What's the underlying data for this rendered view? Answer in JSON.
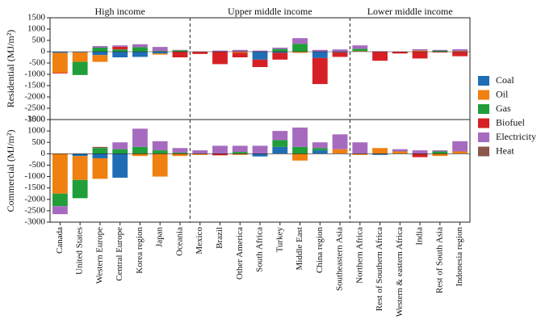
{
  "chart_data": [
    {
      "type": "bar",
      "stacked": true,
      "ylabel": "Residential (MJ/m²)",
      "ylim": [
        -3000,
        1500
      ],
      "yticks": [
        1500,
        1000,
        500,
        0,
        -500,
        -1000,
        -1500,
        -2000,
        -2500,
        -3000
      ],
      "groups": [
        {
          "name": "High income",
          "categories": [
            "Canada",
            "United States",
            "Western Europe",
            "Central Europe",
            "Korea region",
            "Japan",
            "Oceania"
          ]
        },
        {
          "name": "Upper middle income",
          "categories": [
            "Mexico",
            "Brazil",
            "Other America",
            "South Africa",
            "Turkey",
            "Middle East",
            "China region",
            "Southeastern Asia"
          ]
        },
        {
          "name": "Lower middle income",
          "categories": [
            "Northern Africa",
            "Rest of Southern Africa",
            "Western & eastern Africa",
            "India",
            "Rest of South Asia",
            "Indonesia region"
          ]
        }
      ],
      "series": [
        {
          "name": "Coal",
          "color": "#1f6eb5",
          "values": [
            -50,
            -30,
            -150,
            -250,
            -230,
            -80,
            0,
            0,
            0,
            0,
            -350,
            -50,
            0,
            -280,
            -30,
            0,
            0,
            0,
            0,
            0,
            0
          ]
        },
        {
          "name": "Oil",
          "color": "#f08010",
          "values": [
            -880,
            -420,
            -300,
            0,
            0,
            -50,
            0,
            0,
            0,
            -50,
            0,
            0,
            -50,
            0,
            0,
            30,
            0,
            0,
            50,
            0,
            30
          ]
        },
        {
          "name": "Gas",
          "color": "#1f9e3a",
          "values": [
            0,
            -580,
            180,
            100,
            200,
            30,
            60,
            0,
            0,
            0,
            0,
            120,
            350,
            0,
            0,
            100,
            0,
            0,
            0,
            50,
            0
          ]
        },
        {
          "name": "Biofuel",
          "color": "#d62025",
          "values": [
            -30,
            0,
            0,
            120,
            0,
            0,
            -250,
            -100,
            -550,
            -200,
            -330,
            -300,
            0,
            -1150,
            -200,
            0,
            -400,
            -80,
            -300,
            -30,
            -200
          ]
        },
        {
          "name": "Electricity",
          "color": "#a66bbf",
          "values": [
            0,
            0,
            70,
            60,
            130,
            180,
            20,
            0,
            50,
            80,
            50,
            60,
            250,
            80,
            100,
            150,
            20,
            0,
            60,
            30,
            80
          ]
        },
        {
          "name": "Heat",
          "color": "#8c564b",
          "values": [
            0,
            0,
            0,
            0,
            0,
            0,
            0,
            0,
            0,
            0,
            0,
            0,
            0,
            0,
            0,
            0,
            0,
            0,
            0,
            0,
            0
          ]
        }
      ]
    },
    {
      "type": "bar",
      "stacked": true,
      "ylabel": "Commercial (MJ/m²)",
      "ylim": [
        -3000,
        1500
      ],
      "yticks": [
        1500,
        1000,
        500,
        0,
        -500,
        -1000,
        -1500,
        -2000,
        -2500,
        -3000
      ],
      "series": [
        {
          "name": "Coal",
          "color": "#1f6eb5",
          "values": [
            0,
            -100,
            -200,
            -1050,
            0,
            0,
            0,
            0,
            0,
            0,
            -120,
            300,
            0,
            150,
            0,
            0,
            -50,
            0,
            0,
            0,
            0
          ]
        },
        {
          "name": "Oil",
          "color": "#f08010",
          "values": [
            -1750,
            -1050,
            -900,
            0,
            -100,
            -1000,
            -100,
            -50,
            0,
            -50,
            0,
            0,
            -300,
            0,
            200,
            -50,
            250,
            100,
            0,
            -100,
            100
          ]
        },
        {
          "name": "Gas",
          "color": "#1f9e3a",
          "values": [
            -550,
            -800,
            250,
            200,
            300,
            150,
            50,
            0,
            0,
            80,
            0,
            300,
            300,
            100,
            0,
            0,
            0,
            0,
            0,
            100,
            0
          ]
        },
        {
          "name": "Biofuel",
          "color": "#d62025",
          "values": [
            0,
            0,
            0,
            0,
            0,
            0,
            0,
            0,
            -70,
            0,
            0,
            0,
            0,
            0,
            0,
            0,
            0,
            0,
            -150,
            0,
            0
          ]
        },
        {
          "name": "Electricity",
          "color": "#a66bbf",
          "values": [
            -350,
            0,
            0,
            300,
            800,
            400,
            200,
            150,
            350,
            270,
            350,
            400,
            850,
            250,
            650,
            500,
            0,
            100,
            150,
            50,
            450
          ]
        },
        {
          "name": "Heat",
          "color": "#8c564b",
          "values": [
            0,
            0,
            50,
            0,
            0,
            0,
            0,
            0,
            0,
            0,
            0,
            0,
            0,
            0,
            0,
            0,
            0,
            0,
            0,
            0,
            0
          ]
        }
      ]
    }
  ]
}
